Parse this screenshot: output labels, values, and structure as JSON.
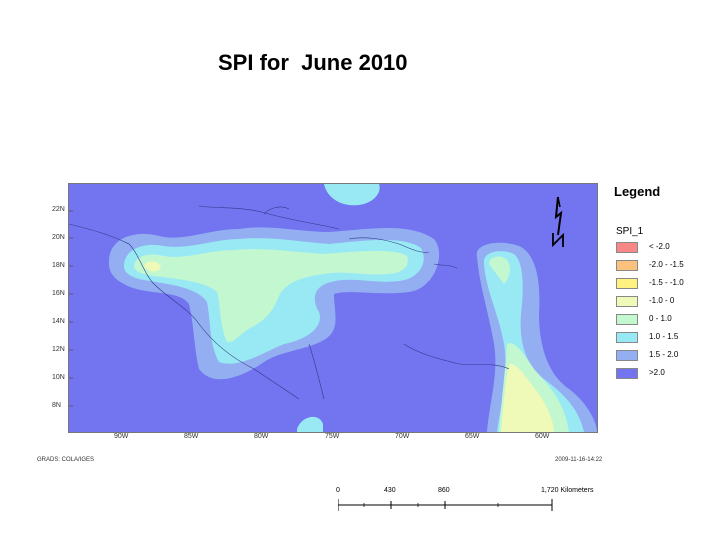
{
  "title": "SPI for  June 2010",
  "map": {
    "lat_labels": [
      "22N",
      "20N",
      "18N",
      "16N",
      "14N",
      "12N",
      "10N",
      "8N"
    ],
    "lon_labels": [
      "90W",
      "85W",
      "80W",
      "75W",
      "70W",
      "65W",
      "60W"
    ],
    "colors": {
      "ocean_background": "#7274f0",
      "class_1_5_2_0": "#93aff2",
      "class_1_0_1_5": "#99e9f4",
      "class_0_1_0": "#c2f7d0",
      "class_m1_0_0": "#eff9b8",
      "class_m1_5_m1_0": "#fff281"
    }
  },
  "legend": {
    "title": "Legend",
    "layer": "SPI_1",
    "items": [
      {
        "label": "< -2.0",
        "color": "#f88787"
      },
      {
        "label": "-2.0 - -1.5",
        "color": "#fbc27e"
      },
      {
        "label": "-1.5 - -1.0",
        "color": "#fff281"
      },
      {
        "label": "-1.0 - 0",
        "color": "#eff9b8"
      },
      {
        "label": "0 - 1.0",
        "color": "#c2f7d0"
      },
      {
        "label": "1.0 - 1.5",
        "color": "#99e9f4"
      },
      {
        "label": "1.5 - 2.0",
        "color": "#93aff2"
      },
      {
        "label": ">2.0",
        "color": "#7274f0"
      }
    ]
  },
  "footer": {
    "left": "GRADS: COLA/IGES",
    "right": "2009-11-16-14:22"
  },
  "scalebar": {
    "labels": [
      "0",
      "430",
      "860",
      "1,720 Kilometers"
    ]
  }
}
